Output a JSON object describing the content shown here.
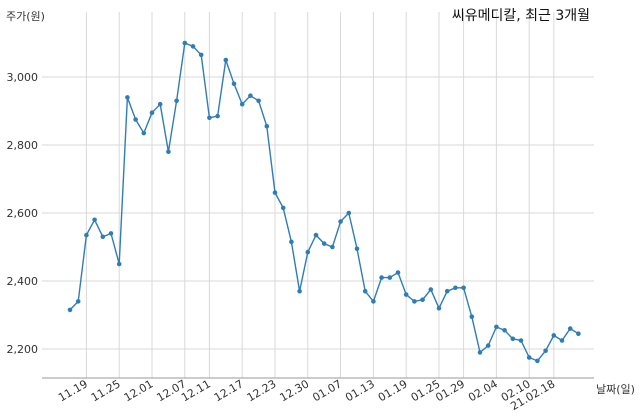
{
  "chart_data": {
    "type": "line",
    "title": "씨유메디칼, 최근 3개월",
    "ylabel": "주가(원)",
    "xlabel": "날짜(일)",
    "ylim": [
      2110,
      3120
    ],
    "y_ticks": [
      2200,
      2400,
      2600,
      2800,
      3000
    ],
    "y_tick_labels": [
      "2,200",
      "2,400",
      "2,600",
      "2,800",
      "3,000"
    ],
    "grid": true,
    "color": "#2f7db4",
    "x_tick_labels": [
      "11.19",
      "11.25",
      "12.01",
      "12.07",
      "12.11",
      "12.17",
      "12.23",
      "12.30",
      "01.07",
      "01.13",
      "01.19",
      "01.25",
      "01.29",
      "02.04",
      "02.10",
      "21.02.18"
    ],
    "x_tick_index": [
      2,
      6,
      10,
      14,
      17,
      21,
      25,
      29,
      33,
      37,
      41,
      45,
      48,
      52,
      56,
      59
    ],
    "series": [
      {
        "values": [
          2315,
          2340,
          2535,
          2580,
          2530,
          2540,
          2450,
          2940,
          2875,
          2835,
          2895,
          2920,
          2780,
          2930,
          3100,
          3090,
          3065,
          2880,
          2885,
          3050,
          2980,
          2920,
          2945,
          2930,
          2855,
          2660,
          2615,
          2515,
          2370,
          2485,
          2535,
          2510,
          2500,
          2575,
          2600,
          2495,
          2370,
          2340,
          2410,
          2410,
          2425,
          2360,
          2340,
          2345,
          2375,
          2320,
          2370,
          2380,
          2380,
          2295,
          2190,
          2210,
          2265,
          2255,
          2230,
          2225,
          2175,
          2165,
          2195,
          2240,
          2225,
          2260,
          2245
        ]
      }
    ]
  }
}
